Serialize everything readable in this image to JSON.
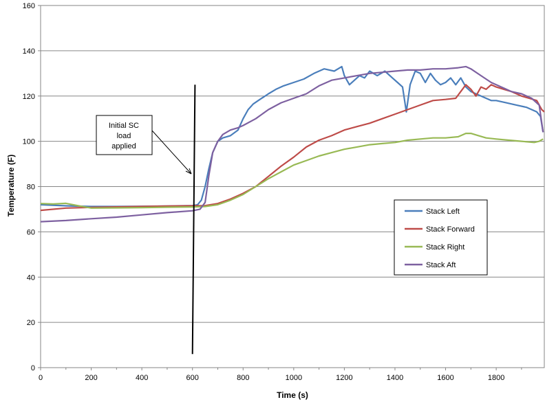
{
  "chart_data": {
    "type": "line",
    "xlabel": "Time (s)",
    "ylabel": "Temperature (F)",
    "xlim": [
      0,
      1990
    ],
    "ylim": [
      0,
      160
    ],
    "xticks": [
      0,
      200,
      400,
      600,
      800,
      1000,
      1200,
      1400,
      1600,
      1800
    ],
    "yticks": [
      0,
      20,
      40,
      60,
      80,
      100,
      120,
      140,
      160
    ],
    "grid": "horizontal",
    "legend_position": "right",
    "series": [
      {
        "name": "Stack Left",
        "color": "#4a7ebb",
        "x": [
          0,
          100,
          200,
          300,
          400,
          500,
          600,
          620,
          635,
          650,
          665,
          680,
          700,
          720,
          750,
          780,
          800,
          820,
          840,
          860,
          880,
          900,
          930,
          960,
          1000,
          1040,
          1080,
          1120,
          1160,
          1190,
          1200,
          1220,
          1240,
          1260,
          1280,
          1300,
          1330,
          1360,
          1390,
          1410,
          1430,
          1445,
          1460,
          1480,
          1500,
          1520,
          1540,
          1560,
          1580,
          1600,
          1620,
          1640,
          1660,
          1680,
          1700,
          1720,
          1740,
          1760,
          1780,
          1800,
          1840,
          1880,
          1920,
          1960,
          1975,
          1985
        ],
        "y": [
          72,
          71.5,
          71.2,
          71.2,
          71.3,
          71.4,
          71.6,
          72,
          74,
          80,
          88,
          95,
          100,
          101.5,
          102.5,
          105,
          110,
          114,
          116.5,
          118,
          119.5,
          121,
          123,
          124.5,
          126,
          127.5,
          130,
          132,
          131,
          133,
          129,
          125,
          127,
          129,
          128,
          131,
          129,
          131,
          128,
          126,
          124,
          113,
          125,
          131,
          130,
          126,
          130,
          127,
          125,
          126,
          128,
          125,
          128,
          124,
          122,
          121,
          120,
          119,
          118,
          118,
          117,
          116,
          115,
          113,
          111,
          104
        ]
      },
      {
        "name": "Stack Forward",
        "color": "#be4b48",
        "x": [
          0,
          100,
          200,
          300,
          400,
          500,
          600,
          650,
          700,
          750,
          800,
          850,
          900,
          950,
          1000,
          1050,
          1100,
          1150,
          1200,
          1250,
          1300,
          1350,
          1400,
          1450,
          1500,
          1550,
          1600,
          1640,
          1660,
          1680,
          1700,
          1720,
          1740,
          1760,
          1780,
          1800,
          1830,
          1860,
          1900,
          1930,
          1960,
          1980,
          1990
        ],
        "y": [
          69.5,
          70.5,
          70.8,
          71,
          71.2,
          71.4,
          71.5,
          71.6,
          72.5,
          74.5,
          77,
          80,
          84.5,
          89,
          93,
          97.5,
          100.5,
          102.5,
          105,
          106.5,
          108,
          110,
          112,
          114,
          116,
          118,
          118.5,
          119,
          122,
          125,
          123,
          120,
          124,
          123,
          125,
          124,
          123,
          122,
          120,
          119,
          118,
          114,
          113
        ]
      },
      {
        "name": "Stack Right",
        "color": "#98b954",
        "x": [
          0,
          50,
          100,
          150,
          200,
          300,
          400,
          500,
          600,
          650,
          700,
          750,
          800,
          850,
          900,
          950,
          1000,
          1050,
          1100,
          1150,
          1200,
          1250,
          1300,
          1350,
          1400,
          1450,
          1500,
          1550,
          1600,
          1650,
          1680,
          1700,
          1730,
          1760,
          1800,
          1850,
          1900,
          1950,
          1970,
          1985
        ],
        "y": [
          72.5,
          72.3,
          72.6,
          71.5,
          70.5,
          70.6,
          70.7,
          70.9,
          71,
          71.2,
          72,
          74,
          76.5,
          80,
          83.5,
          86.5,
          89.5,
          91.5,
          93.5,
          95,
          96.5,
          97.5,
          98.5,
          99,
          99.5,
          100.5,
          101,
          101.5,
          101.5,
          102,
          103.5,
          103.5,
          102.5,
          101.5,
          101,
          100.5,
          100,
          99.5,
          100,
          101
        ]
      },
      {
        "name": "Stack Aft",
        "color": "#7d60a0",
        "x": [
          0,
          100,
          200,
          300,
          400,
          500,
          600,
          630,
          650,
          665,
          680,
          700,
          720,
          750,
          780,
          800,
          850,
          900,
          950,
          1000,
          1050,
          1100,
          1150,
          1200,
          1250,
          1300,
          1350,
          1400,
          1450,
          1500,
          1550,
          1600,
          1650,
          1680,
          1700,
          1740,
          1780,
          1820,
          1860,
          1900,
          1940,
          1970,
          1985
        ],
        "y": [
          64.5,
          65,
          65.8,
          66.5,
          67.5,
          68.5,
          69.3,
          70,
          73,
          85,
          95,
          100,
          103,
          105,
          106,
          107,
          110,
          114,
          117,
          119,
          121,
          124.5,
          127,
          128,
          129,
          130,
          130.5,
          131,
          131.5,
          131.5,
          132,
          132,
          132.5,
          133,
          132,
          129,
          126,
          124,
          122,
          121,
          119,
          116,
          104
        ]
      }
    ],
    "annotation": {
      "lines": [
        "Initial SC",
        "load",
        "applied"
      ],
      "marker_line_x": [
        610,
        600
      ],
      "marker_line_y": [
        125,
        6
      ]
    }
  }
}
